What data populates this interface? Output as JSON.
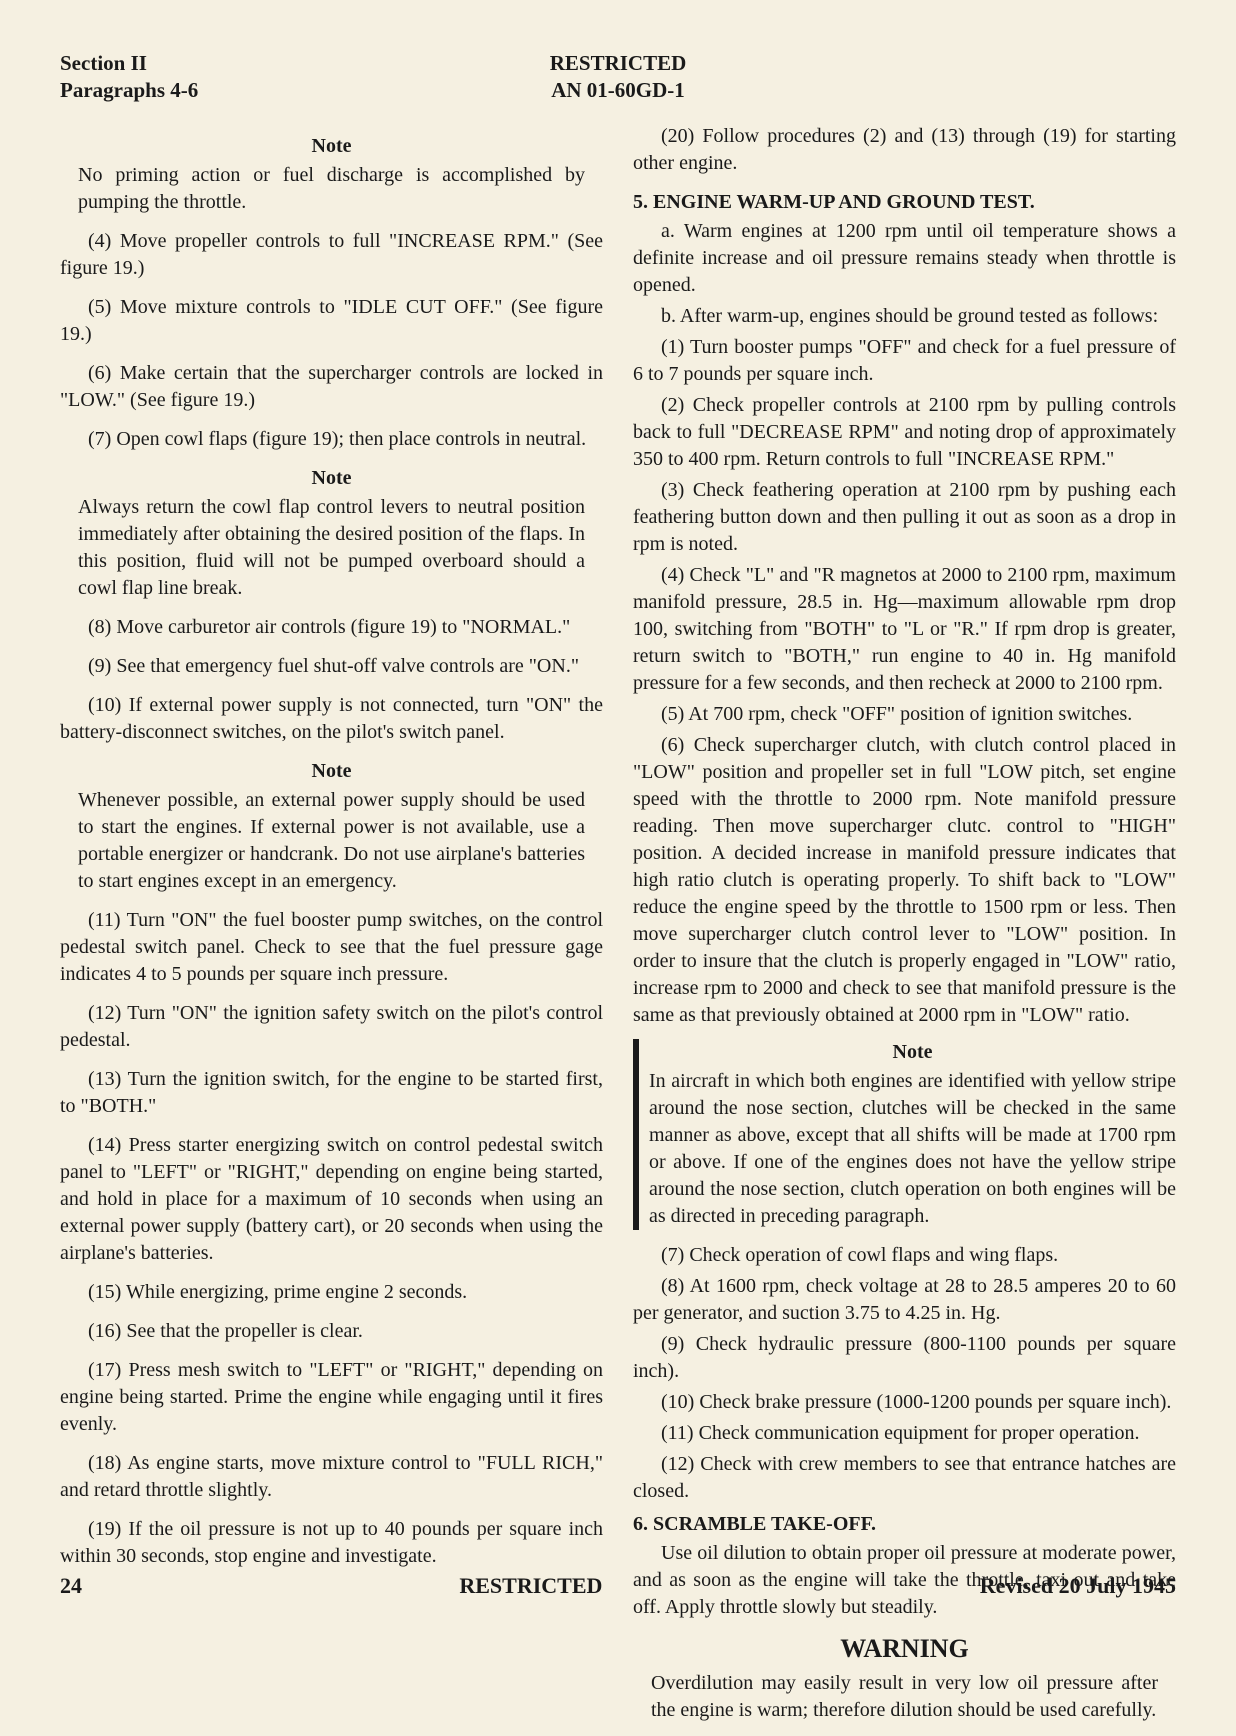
{
  "header": {
    "section": "Section II",
    "paragraphs": "Paragraphs 4-6",
    "classification": "RESTRICTED",
    "doc_number": "AN 01-60GD-1"
  },
  "left_col": {
    "note1_heading": "Note",
    "note1_body": "No priming action or fuel discharge is accomplished by pumping the throttle.",
    "p4": "(4) Move propeller controls to full \"INCREASE RPM.\" (See figure 19.)",
    "p5": "(5) Move mixture controls to \"IDLE CUT OFF.\" (See figure 19.)",
    "p6": "(6) Make certain that the supercharger controls are locked in \"LOW.\" (See figure 19.)",
    "p7": "(7) Open cowl flaps (figure 19); then place controls in neutral.",
    "note2_heading": "Note",
    "note2_body": "Always return the cowl flap control levers to neutral position immediately after obtaining the desired position of the flaps. In this position, fluid will not be pumped overboard should a cowl flap line break.",
    "p8": "(8) Move carburetor air controls (figure 19) to \"NORMAL.\"",
    "p9": "(9) See that emergency fuel shut-off valve controls are \"ON.\"",
    "p10": "(10) If external power supply is not connected, turn \"ON\" the battery-disconnect switches, on the pilot's switch panel.",
    "note3_heading": "Note",
    "note3_body": "Whenever possible, an external power supply should be used to start the engines. If external power is not available, use a portable energizer or handcrank. Do not use airplane's batteries to start engines except in an emergency.",
    "p11": "(11) Turn \"ON\" the fuel booster pump switches, on the control pedestal switch panel. Check to see that the fuel pressure gage indicates 4 to 5 pounds per square inch pressure.",
    "p12": "(12) Turn \"ON\" the ignition safety switch on the pilot's control pedestal.",
    "p13": "(13) Turn the ignition switch, for the engine to be started first, to \"BOTH.\"",
    "p14": "(14) Press starter energizing switch on control pedestal switch panel to \"LEFT\" or \"RIGHT,\" depending on engine being started, and hold in place for a maximum of 10 seconds when using an external power supply (battery cart), or 20 seconds when using the airplane's batteries.",
    "p15": "(15) While energizing, prime engine 2 seconds.",
    "p16": "(16) See that the propeller is clear.",
    "p17": "(17) Press mesh switch to \"LEFT\" or \"RIGHT,\" depending on engine being started. Prime the engine while engaging until it fires evenly.",
    "p18": "(18) As engine starts, move mixture control to \"FULL RICH,\" and retard throttle slightly.",
    "p19": "(19) If the oil pressure is not up to 40 pounds per square inch within 30 seconds, stop engine and investigate."
  },
  "right_col": {
    "p20": "(20) Follow procedures (2) and (13) through (19) for starting other engine.",
    "sec5_head": "5. ENGINE WARM-UP AND GROUND TEST.",
    "sec5_a": "a. Warm engines at 1200 rpm until oil temperature shows a definite increase and oil pressure remains steady when throttle is opened.",
    "sec5_b": "b. After warm-up, engines should be ground tested as follows:",
    "b1": "(1) Turn booster pumps \"OFF\" and check for a fuel pressure of 6 to 7 pounds per square inch.",
    "b2": "(2) Check propeller controls at 2100 rpm by pulling controls back to full \"DECREASE RPM\" and noting drop of approximately 350 to 400 rpm. Return controls to full \"INCREASE RPM.\"",
    "b3": "(3) Check feathering operation at 2100 rpm by pushing each feathering button down and then pulling it out as soon as a drop in rpm is noted.",
    "b4": "(4) Check \"L\" and \"R magnetos at 2000 to 2100 rpm, maximum manifold pressure, 28.5 in. Hg—maximum allowable rpm drop 100, switching from \"BOTH\" to \"L or \"R.\" If rpm drop is greater, return switch to \"BOTH,\" run engine to 40 in. Hg manifold pressure for a few seconds, and then recheck at 2000 to 2100 rpm.",
    "b5": "(5) At 700 rpm, check \"OFF\" position of ignition switches.",
    "b6": "(6) Check supercharger clutch, with clutch control placed in \"LOW\" position and propeller set in full \"LOW pitch, set engine speed with the throttle to 2000 rpm. Note manifold pressure reading. Then move supercharger clutc. control to \"HIGH\" position. A decided increase in manifold pressure indicates that high ratio clutch is operating properly. To shift back to \"LOW\" reduce the engine speed by the throttle to 1500 rpm or less. Then move supercharger clutch control lever to \"LOW\" position. In order to insure that the clutch is properly engaged in \"LOW\" ratio, increase rpm to 2000 and check to see that manifold pressure is the same as that previously obtained at 2000 rpm in \"LOW\" ratio.",
    "note4_heading": "Note",
    "note4_body": "In aircraft in which both engines are identified with yellow stripe around the nose section, clutches will be checked in the same manner as above, except that all shifts will be made at 1700 rpm or above. If one of the engines does not have the yellow stripe around the nose section, clutch operation on both engines will be as directed in preceding paragraph.",
    "b7": "(7) Check operation of cowl flaps and wing flaps.",
    "b8": "(8) At 1600 rpm, check voltage at 28 to 28.5 amperes 20 to 60 per generator, and suction 3.75 to 4.25 in. Hg.",
    "b9": "(9) Check hydraulic pressure (800-1100 pounds per square inch).",
    "b10": "(10) Check brake pressure (1000-1200 pounds per square inch).",
    "b11": "(11) Check communication equipment for proper operation.",
    "b12": "(12) Check with crew members to see that entrance hatches are closed.",
    "sec6_head": "6. SCRAMBLE TAKE-OFF.",
    "sec6_body": "Use oil dilution to obtain proper oil pressure at moderate power, and as soon as the engine will take the throttle, taxi out and take off. Apply throttle slowly but steadily.",
    "warning_heading": "WARNING",
    "warning_body": "Overdilution may easily result in very low oil pressure after the engine is warm; therefore dilution should be used carefully."
  },
  "footer": {
    "page": "24",
    "classification": "RESTRICTED",
    "revision": "Revised 20 July 1945"
  }
}
